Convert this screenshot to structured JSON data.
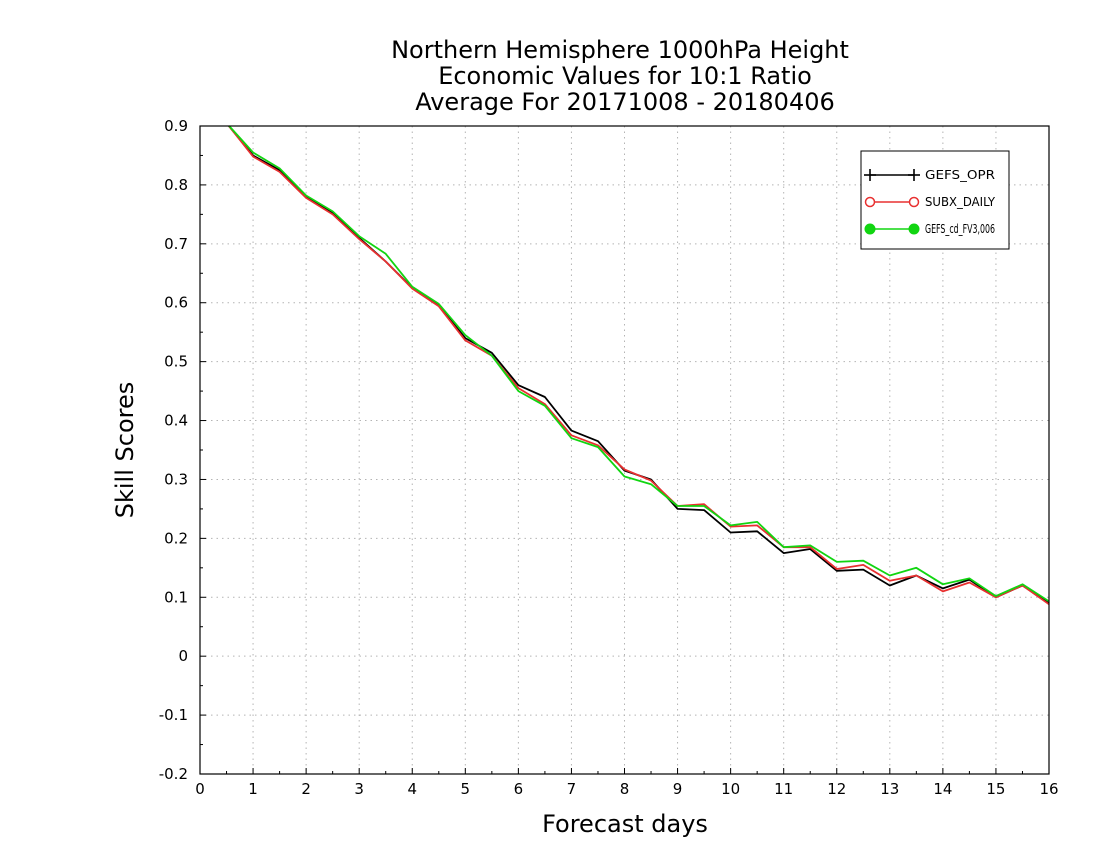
{
  "chart_data": {
    "type": "line",
    "title_lines": [
      "Northern Hemisphere 1000hPa Height",
      "Economic Values for 10:1 Ratio",
      "Average For 20171008 - 20180406"
    ],
    "xlabel": "Forecast days",
    "ylabel": "Skill Scores",
    "xlim": [
      0,
      16
    ],
    "ylim": [
      -0.2,
      0.9
    ],
    "x_ticks": [
      "0",
      "1",
      "2",
      "3",
      "4",
      "5",
      "6",
      "7",
      "8",
      "9",
      "10",
      "11",
      "12",
      "13",
      "14",
      "15",
      "16"
    ],
    "y_ticks": [
      "-0.2",
      "-0.1",
      "0",
      "0.1",
      "0.2",
      "0.3",
      "0.4",
      "0.5",
      "0.6",
      "0.7",
      "0.8",
      "0.9"
    ],
    "grid": true,
    "legend_position": "top-right",
    "x": [
      0.5,
      1,
      1.5,
      2,
      2.5,
      3,
      3.5,
      4,
      4.5,
      5,
      5.5,
      6,
      6.5,
      7,
      7.5,
      8,
      8.5,
      9,
      9.5,
      10,
      10.5,
      11,
      11.5,
      12,
      12.5,
      13,
      13.5,
      14,
      14.5,
      15,
      15.5,
      16
    ],
    "series": [
      {
        "name": "GEFS_OPR",
        "color": "#000000",
        "marker": "plus",
        "values": [
          0.905,
          0.85,
          0.825,
          0.78,
          0.752,
          0.71,
          0.67,
          0.625,
          0.595,
          0.54,
          0.515,
          0.46,
          0.44,
          0.383,
          0.365,
          0.315,
          0.3,
          0.25,
          0.248,
          0.21,
          0.212,
          0.175,
          0.182,
          0.145,
          0.147,
          0.12,
          0.137,
          0.115,
          0.13,
          0.1,
          0.12,
          0.09
        ]
      },
      {
        "name": "SUBX_DAILY",
        "color": "#e83030",
        "marker": "open-circle",
        "values": [
          0.905,
          0.848,
          0.822,
          0.778,
          0.75,
          0.708,
          0.67,
          0.624,
          0.594,
          0.536,
          0.51,
          0.455,
          0.428,
          0.375,
          0.358,
          0.317,
          0.298,
          0.255,
          0.258,
          0.22,
          0.222,
          0.185,
          0.185,
          0.148,
          0.155,
          0.128,
          0.137,
          0.11,
          0.125,
          0.1,
          0.12,
          0.088
        ]
      },
      {
        "name": "GEFS_cd_FV3,006",
        "color": "#11d511",
        "marker": "filled-circle",
        "values": [
          0.905,
          0.855,
          0.828,
          0.782,
          0.755,
          0.713,
          0.683,
          0.627,
          0.598,
          0.545,
          0.51,
          0.45,
          0.425,
          0.37,
          0.355,
          0.305,
          0.292,
          0.255,
          0.255,
          0.222,
          0.228,
          0.185,
          0.188,
          0.16,
          0.162,
          0.137,
          0.15,
          0.122,
          0.132,
          0.102,
          0.122,
          0.093
        ]
      }
    ]
  }
}
